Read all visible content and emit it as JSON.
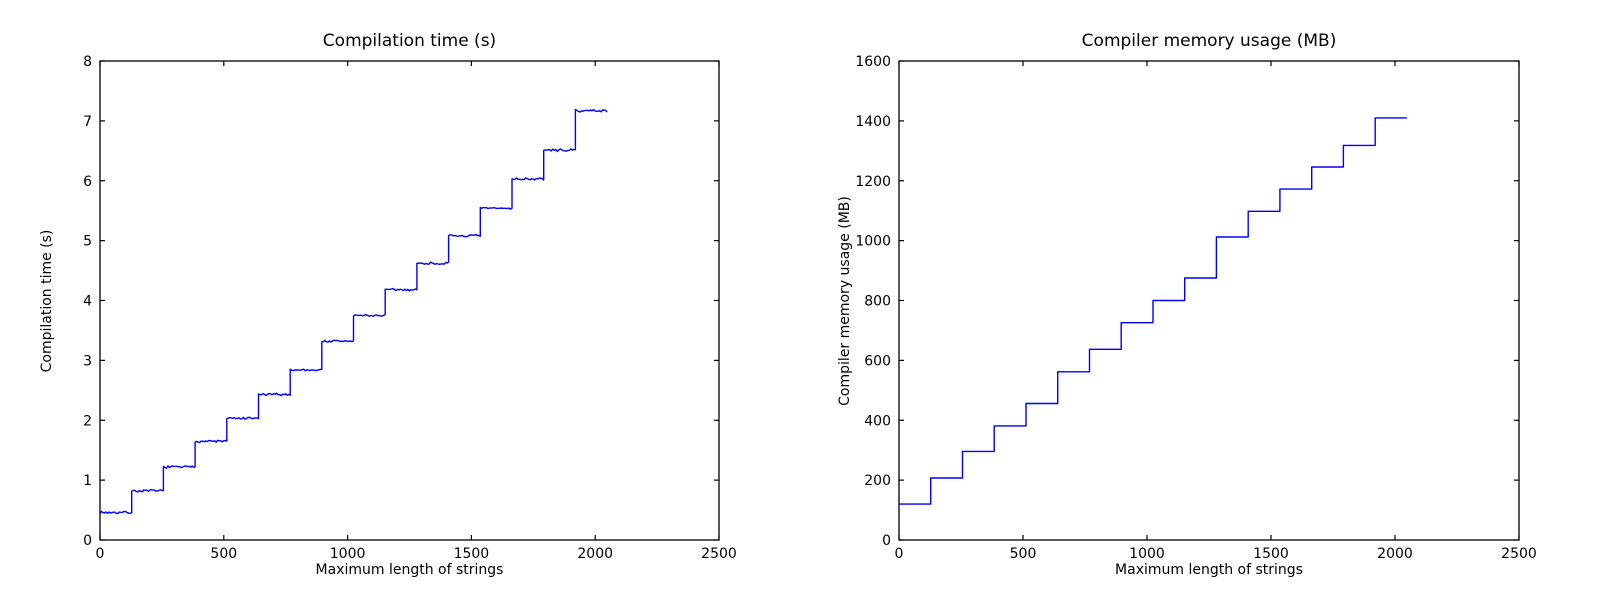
{
  "figure": {
    "background": "#ffffff",
    "axis_color": "#000000",
    "tick_label_color": "#000000"
  },
  "chart_data": [
    {
      "type": "line",
      "subtype": "step",
      "title": "Compilation time (s)",
      "xlabel": "Maximum length of strings",
      "ylabel": "Compilation time (s)",
      "xlim": [
        0,
        2500
      ],
      "ylim": [
        0,
        8
      ],
      "xticks": [
        0,
        500,
        1000,
        1500,
        2000,
        2500
      ],
      "yticks": [
        0,
        1,
        2,
        3,
        4,
        5,
        6,
        7,
        8
      ],
      "grid": false,
      "legend": null,
      "line_color": "#0000ff",
      "x_start": 0,
      "x_end": 2048,
      "step_width": 128,
      "step_values": [
        0.46,
        0.82,
        1.22,
        1.65,
        2.03,
        2.43,
        2.84,
        3.32,
        3.75,
        4.18,
        4.62,
        5.08,
        5.54,
        6.03,
        6.51,
        7.17
      ],
      "noise_amplitude": 0.025
    },
    {
      "type": "line",
      "subtype": "step",
      "title": "Compiler memory usage (MB)",
      "xlabel": "Maximum length of strings",
      "ylabel": "Compiler memory usage (MB)",
      "xlim": [
        0,
        2500
      ],
      "ylim": [
        0,
        1600
      ],
      "xticks": [
        0,
        500,
        1000,
        1500,
        2000,
        2500
      ],
      "yticks": [
        0,
        200,
        400,
        600,
        800,
        1000,
        1200,
        1400,
        1600
      ],
      "grid": false,
      "legend": null,
      "line_color": "#0000ff",
      "x_start": 0,
      "x_end": 2048,
      "step_width": 128,
      "step_values": [
        120,
        207,
        296,
        381,
        456,
        562,
        637,
        726,
        800,
        875,
        1012,
        1098,
        1172,
        1246,
        1318,
        1410
      ],
      "noise_amplitude": 0
    }
  ]
}
